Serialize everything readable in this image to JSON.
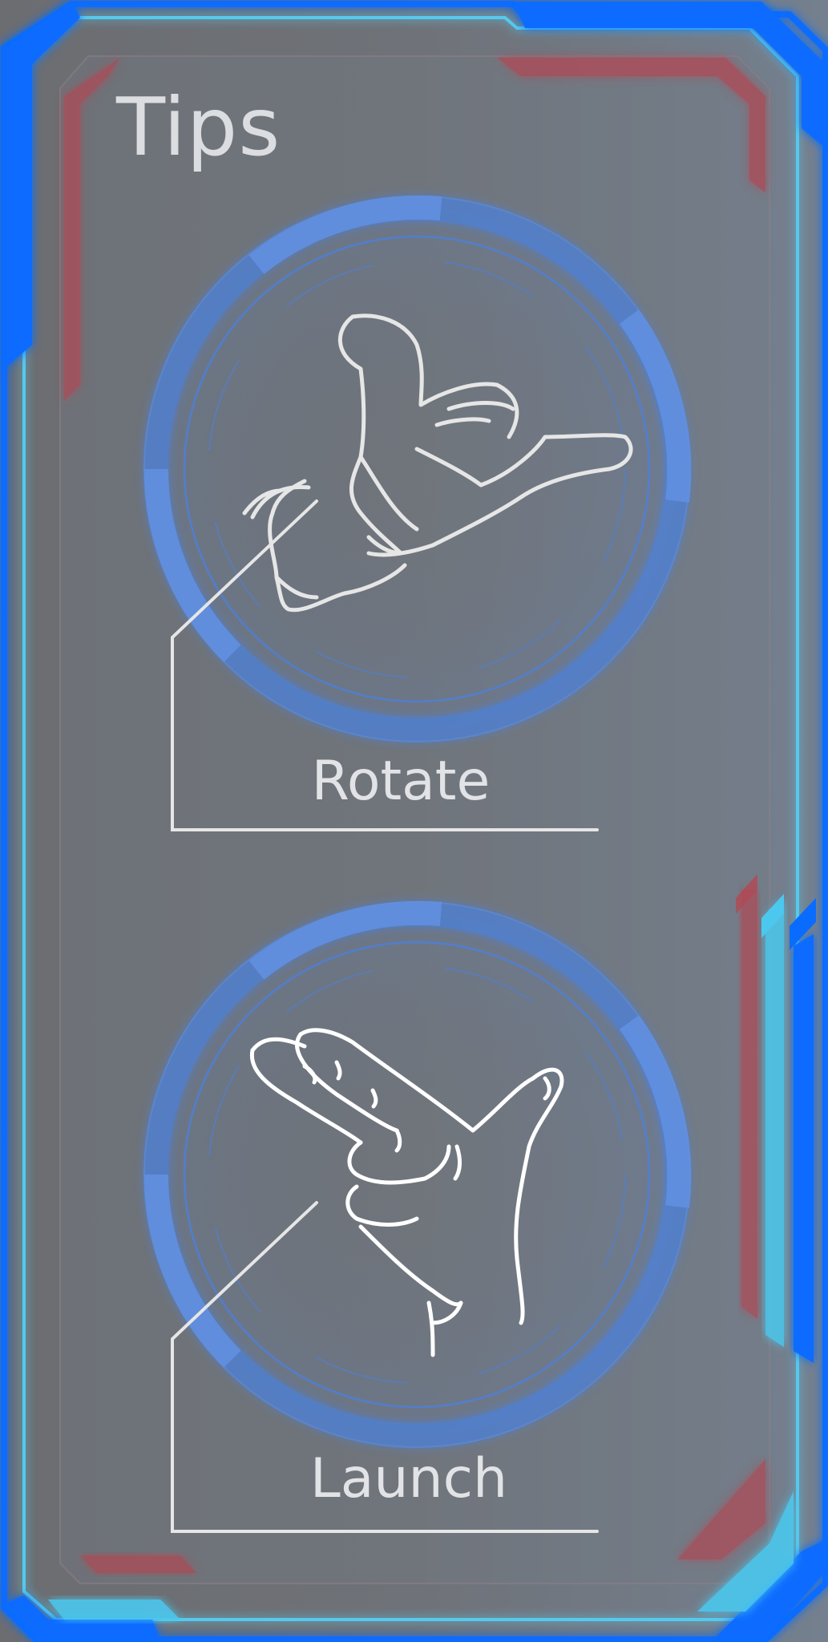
{
  "panel": {
    "title": "Tips"
  },
  "tips": [
    {
      "label": "Rotate",
      "icon": "thumb-pinky-hand-icon"
    },
    {
      "label": "Launch",
      "icon": "finger-gun-hand-icon"
    }
  ],
  "colors": {
    "frame_blue": "#0a6cff",
    "frame_cyan": "#4cc8ee",
    "frame_red": "#b04a55",
    "ring_blue": "#4f80d4",
    "text": "#dcdde0",
    "background": "#6b6d71"
  }
}
